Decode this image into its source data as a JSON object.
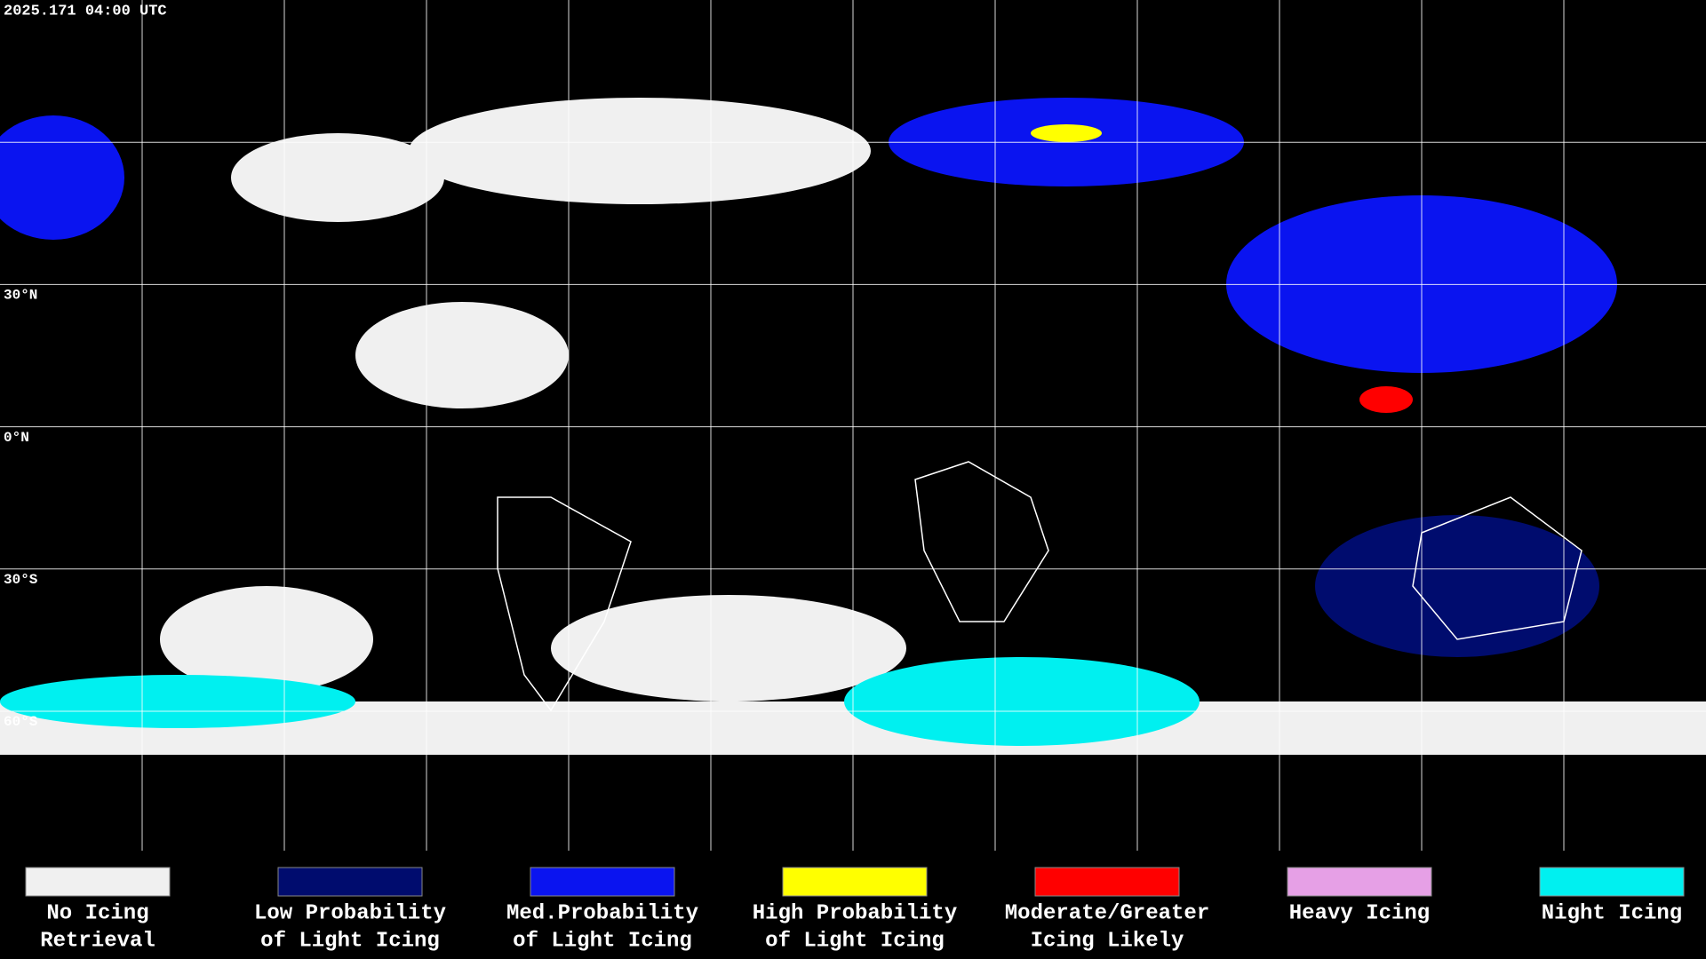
{
  "header": {
    "timestamp": "2025.171 04:00 UTC"
  },
  "latitude_labels": [
    "30°N",
    "0°N",
    "30°S",
    "60°S"
  ],
  "legend": [
    {
      "color": "#f0f0f0",
      "lines": [
        "No Icing",
        "Retrieval"
      ]
    },
    {
      "color": "#000c6e",
      "lines": [
        "Low Probability",
        "of Light Icing"
      ]
    },
    {
      "color": "#0a14f0",
      "lines": [
        "Med.Probability",
        "of Light Icing"
      ]
    },
    {
      "color": "#ffff00",
      "lines": [
        "High Probability",
        "of Light Icing"
      ]
    },
    {
      "color": "#ff0000",
      "lines": [
        "Moderate/Greater",
        "Icing Likely"
      ]
    },
    {
      "color": "#e6a0e6",
      "lines": [
        "Heavy Icing",
        ""
      ]
    },
    {
      "color": "#00f0f0",
      "lines": [
        "Night Icing",
        ""
      ]
    }
  ]
}
